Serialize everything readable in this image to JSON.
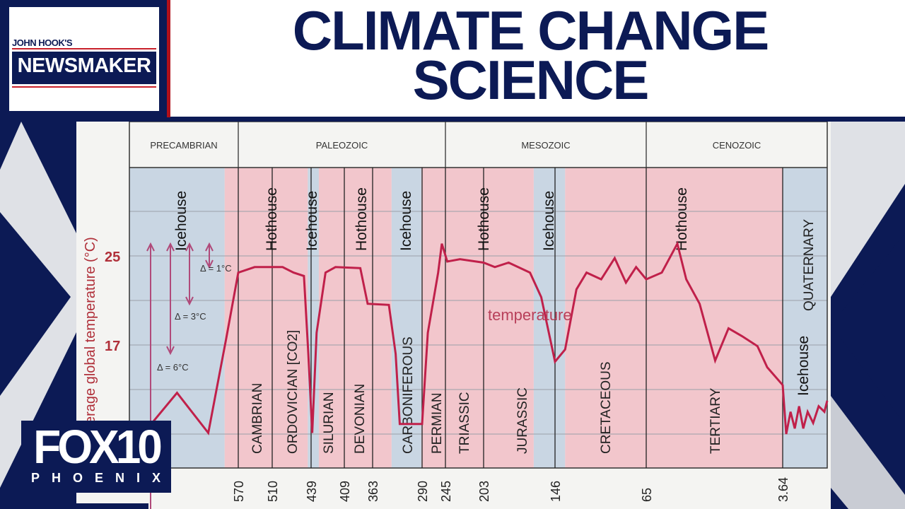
{
  "header": {
    "logo_small": "JOHN HOOK'S",
    "logo_main": "NEWSMAKER",
    "title_line1": "CLIMATE CHANGE",
    "title_line2": "SCIENCE"
  },
  "station_logo": {
    "main": "FOX10",
    "sub": "PHOENIX"
  },
  "colors": {
    "navy": "#0c1a55",
    "red": "#b0101a",
    "curve": "#c0204a",
    "icehouse": "#c9d6e3",
    "hothouse": "#f2c6cc",
    "annotation": "#b04a7a"
  },
  "chart_data": {
    "type": "line",
    "ylabel": "erage global temperature (°C)",
    "y_ticks": [
      "25",
      "17"
    ],
    "y_tick_values": [
      25,
      17
    ],
    "grid": true,
    "x_tick_labels": [
      "570",
      "510",
      "439",
      "409",
      "363",
      "290",
      "245",
      "203",
      "146",
      "65",
      "3.64"
    ],
    "x_tick_values": [
      570,
      510,
      439,
      409,
      363,
      290,
      245,
      203,
      146,
      65,
      3.64
    ],
    "eras": [
      {
        "name": "PRECAMBRIAN",
        "to": 570
      },
      {
        "name": "PALEOZOIC",
        "from": 570,
        "to": 245
      },
      {
        "name": "MESOZOIC",
        "from": 245,
        "to": 65
      },
      {
        "name": "CENOZOIC",
        "from": 65,
        "to": 0
      }
    ],
    "periods": [
      {
        "name": "CAMBRIAN",
        "from": 570,
        "to": 510
      },
      {
        "name": "ORDOVICIAN [CO2]",
        "from": 510,
        "to": 439
      },
      {
        "name": "SILURIAN",
        "from": 439,
        "to": 409
      },
      {
        "name": "DEVONIAN",
        "from": 409,
        "to": 363
      },
      {
        "name": "CARBONIFEROUS",
        "from": 363,
        "to": 290
      },
      {
        "name": "PERMIAN",
        "from": 290,
        "to": 245
      },
      {
        "name": "TRIASSIC",
        "from": 245,
        "to": 203
      },
      {
        "name": "JURASSIC",
        "from": 203,
        "to": 146
      },
      {
        "name": "CRETACEOUS",
        "from": 146,
        "to": 65
      },
      {
        "name": "TERTIARY",
        "from": 65,
        "to": 3.64
      },
      {
        "name": "QUATERNARY",
        "from": 3.64,
        "to": 0
      }
    ],
    "regimes": [
      {
        "label": "Icehouse",
        "from": 650,
        "to": 580,
        "kind": "icehouse"
      },
      {
        "label": "Hothouse",
        "from": 580,
        "to": 445,
        "kind": "hothouse"
      },
      {
        "label": "Icehouse",
        "from": 445,
        "to": 432,
        "kind": "icehouse"
      },
      {
        "label": "Hothouse",
        "from": 432,
        "to": 335,
        "kind": "hothouse"
      },
      {
        "label": "Icehouse",
        "from": 335,
        "to": 291,
        "kind": "icehouse"
      },
      {
        "label": "Hothouse",
        "from": 291,
        "to": 163,
        "kind": "hothouse"
      },
      {
        "label": "Icehouse",
        "from": 163,
        "to": 137,
        "kind": "icehouse"
      },
      {
        "label": "Hothouse",
        "from": 137,
        "to": 3.64,
        "kind": "hothouse"
      },
      {
        "label": "Icehouse",
        "from": 3.64,
        "to": 0,
        "kind": "icehouse"
      }
    ],
    "deltas": [
      "Δ = 1°C",
      "Δ = 3°C",
      "Δ = 6°C"
    ],
    "series": [
      {
        "name": "temperature",
        "points": [
          [
            634,
            9.9
          ],
          [
            615,
            12.7
          ],
          [
            592,
            9.1
          ],
          [
            579,
            17.5
          ],
          [
            570,
            23.5
          ],
          [
            541,
            24
          ],
          [
            491,
            24
          ],
          [
            471,
            23.5
          ],
          [
            452,
            23.2
          ],
          [
            444,
            16.2
          ],
          [
            438,
            9.1
          ],
          [
            434,
            18.1
          ],
          [
            426,
            23.5
          ],
          [
            417,
            24
          ],
          [
            383,
            23.9
          ],
          [
            371,
            20.7
          ],
          [
            339,
            20.6
          ],
          [
            329,
            16.2
          ],
          [
            323,
            9.9
          ],
          [
            290,
            9.9
          ],
          [
            279,
            18.1
          ],
          [
            259,
            23.5
          ],
          [
            252,
            26.1
          ],
          [
            243,
            24.5
          ],
          [
            229,
            24.7
          ],
          [
            203,
            24.4
          ],
          [
            194,
            24
          ],
          [
            183,
            24.4
          ],
          [
            166,
            23.5
          ],
          [
            157,
            21.3
          ],
          [
            146,
            15.5
          ],
          [
            137,
            16.6
          ],
          [
            127,
            22
          ],
          [
            118,
            23.5
          ],
          [
            105,
            22.9
          ],
          [
            93,
            24.8
          ],
          [
            83,
            22.6
          ],
          [
            74,
            24
          ],
          [
            65,
            22.9
          ],
          [
            58,
            23.5
          ],
          [
            51,
            26.1
          ],
          [
            47,
            22.9
          ],
          [
            41,
            20.7
          ],
          [
            34,
            15.6
          ],
          [
            28,
            18.5
          ],
          [
            22,
            17.8
          ],
          [
            15,
            16.9
          ],
          [
            10.6,
            15
          ],
          [
            3.64,
            13.4
          ],
          [
            3.35,
            9
          ],
          [
            3,
            11
          ],
          [
            2.65,
            9.5
          ],
          [
            2.3,
            11.5
          ],
          [
            1.96,
            9.5
          ],
          [
            1.6,
            11
          ],
          [
            1.15,
            10
          ],
          [
            0.7,
            11.5
          ],
          [
            0.23,
            11
          ],
          [
            0,
            12
          ]
        ]
      }
    ]
  }
}
